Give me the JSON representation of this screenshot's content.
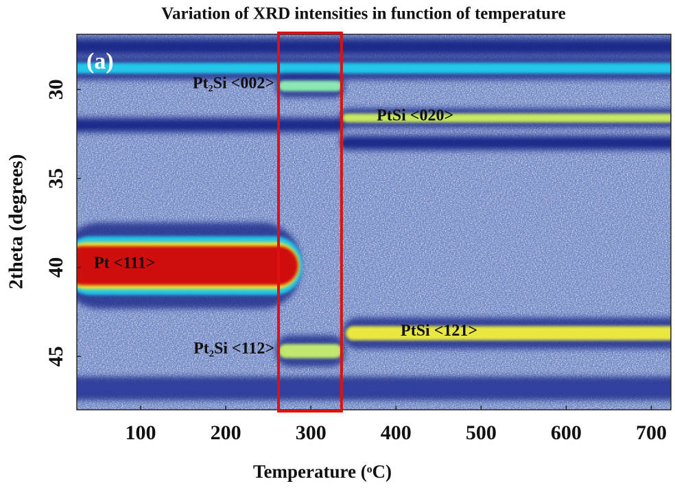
{
  "chart_data": {
    "type": "heatmap",
    "title": "Variation of XRD intensities in function of temperature",
    "x_label": "Temperature (ᵒC)",
    "y_label": "2theta (degrees)",
    "panel_label": "(a)",
    "xlim": [
      25,
      723
    ],
    "xticks": [
      100,
      200,
      300,
      400,
      500,
      600,
      700
    ],
    "ylim": [
      48,
      26.9
    ],
    "yticks": [
      30,
      35,
      40,
      45
    ],
    "highlight": {
      "x": [
        262,
        336
      ],
      "color": "#e01010"
    },
    "series": [
      {
        "x": [
          25,
          723
        ],
        "values": [
          27.6,
          27.6
        ],
        "thickness": 0.5,
        "color": "#1a2a8a"
      },
      {
        "x": [
          25,
          723
        ],
        "values": [
          28.8,
          28.8
        ],
        "thickness": 0.6,
        "color": "#22c6e8"
      },
      {
        "name": "Pt₂Si <002>",
        "x": [
          262,
          337
        ],
        "values": [
          29.8,
          29.8
        ],
        "thickness": 0.6,
        "color": "#8ae8b0"
      },
      {
        "x": [
          25,
          337
        ],
        "values": [
          32.0,
          32.0
        ],
        "thickness": 0.4,
        "color": "#1a2a8a"
      },
      {
        "name": "PtSi <020>",
        "x": [
          337,
          723
        ],
        "values": [
          31.6,
          31.6
        ],
        "thickness": 0.5,
        "color": "#c8e860"
      },
      {
        "x": [
          337,
          723
        ],
        "values": [
          33.0,
          33.0
        ],
        "thickness": 0.4,
        "color": "#1a2a8a"
      },
      {
        "name": "Pt <111>",
        "x": [
          25,
          285
        ],
        "values": [
          39.9,
          39.9
        ],
        "thickness": 2.2,
        "color": "#d01010"
      },
      {
        "name": "Pt₂Si <112>",
        "x": [
          262,
          337
        ],
        "values": [
          44.7,
          44.7
        ],
        "thickness": 0.8,
        "color": "#c0e870"
      },
      {
        "name": "PtSi <121>",
        "x": [
          341,
          723
        ],
        "values": [
          43.7,
          43.7
        ],
        "thickness": 0.8,
        "color": "#e8e840"
      },
      {
        "x": [
          25,
          723
        ],
        "values": [
          46.8,
          46.8
        ],
        "thickness": 0.6,
        "color": "#3040a0"
      }
    ]
  }
}
